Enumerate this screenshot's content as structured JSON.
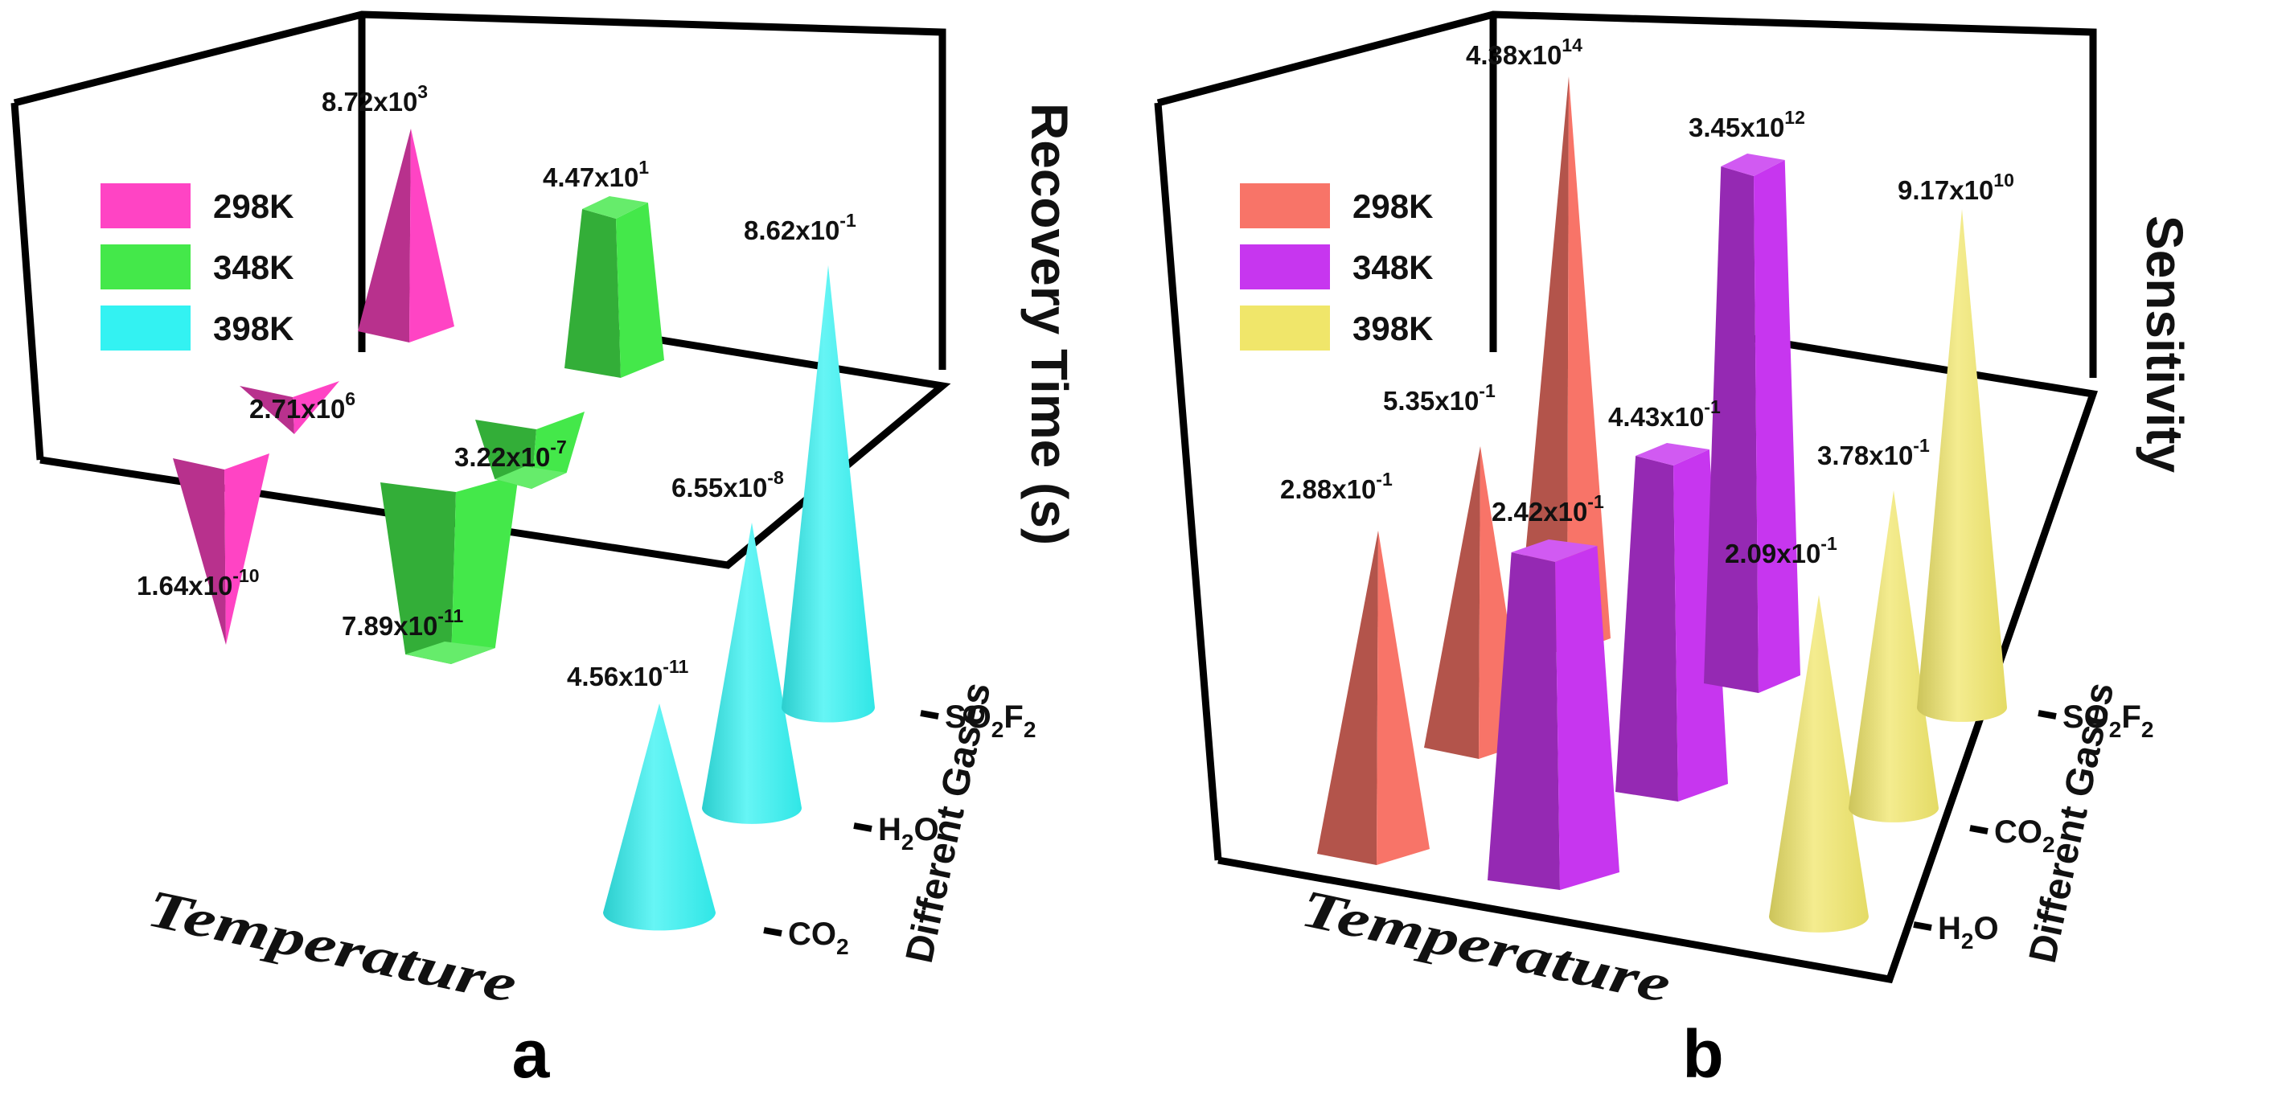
{
  "chart_data": [
    {
      "type": "3d-bar",
      "panel_label": "a",
      "title": "",
      "zlabel": "Recovery Time (s)",
      "xlabel": "Temperature",
      "ylabel": "Different Gases",
      "temperatures": [
        "298K",
        "348K",
        "398K"
      ],
      "gases": [
        {
          "name": "CO",
          "sub": "2"
        },
        {
          "name": "H",
          "sub": "2",
          "tail": "O"
        },
        {
          "name": "SO",
          "sub": "2",
          "tail": "F",
          "sub2": "2"
        }
      ],
      "series": [
        {
          "name": "298K",
          "color": "#ff44c4",
          "shape": "pyramid",
          "values": [
            {
              "mant": "1.64",
              "exp": "-10"
            },
            {
              "mant": "2.71",
              "exp": "6"
            },
            {
              "mant": "8.72",
              "exp": "3"
            }
          ]
        },
        {
          "name": "348K",
          "color": "#44e84a",
          "shape": "frustum",
          "values": [
            {
              "mant": "7.89",
              "exp": "-11"
            },
            {
              "mant": "3.22",
              "exp": "-7"
            },
            {
              "mant": "4.47",
              "exp": "1"
            }
          ]
        },
        {
          "name": "398K",
          "color": "#33f2f2",
          "shape": "cone",
          "values": [
            {
              "mant": "4.56",
              "exp": "-11"
            },
            {
              "mant": "6.55",
              "exp": "-8"
            },
            {
              "mant": "8.62",
              "exp": "-1"
            }
          ]
        }
      ]
    },
    {
      "type": "3d-bar",
      "panel_label": "b",
      "title": "",
      "zlabel": "Sensitivity",
      "xlabel": "Temperature",
      "ylabel": "Different Gases",
      "temperatures": [
        "298K",
        "348K",
        "398K"
      ],
      "gases": [
        {
          "name": "H",
          "sub": "2",
          "tail": "O"
        },
        {
          "name": "CO",
          "sub": "2"
        },
        {
          "name": "SO",
          "sub": "2",
          "tail": "F",
          "sub2": "2"
        }
      ],
      "series": [
        {
          "name": "298K",
          "color": "#f87468",
          "shape": "pyramid",
          "values": [
            {
              "mant": "2.88",
              "exp": "-1"
            },
            {
              "mant": "5.35",
              "exp": "-1"
            },
            {
              "mant": "4.38",
              "exp": "14"
            }
          ]
        },
        {
          "name": "348K",
          "color": "#c736ef",
          "shape": "frustum",
          "values": [
            {
              "mant": "2.42",
              "exp": "-1"
            },
            {
              "mant": "4.43",
              "exp": "-1"
            },
            {
              "mant": "3.45",
              "exp": "12"
            }
          ]
        },
        {
          "name": "398K",
          "color": "#f0e66a",
          "shape": "cone",
          "values": [
            {
              "mant": "2.09",
              "exp": "-1"
            },
            {
              "mant": "3.78",
              "exp": "-1"
            },
            {
              "mant": "9.17",
              "exp": "10"
            }
          ]
        }
      ]
    }
  ]
}
